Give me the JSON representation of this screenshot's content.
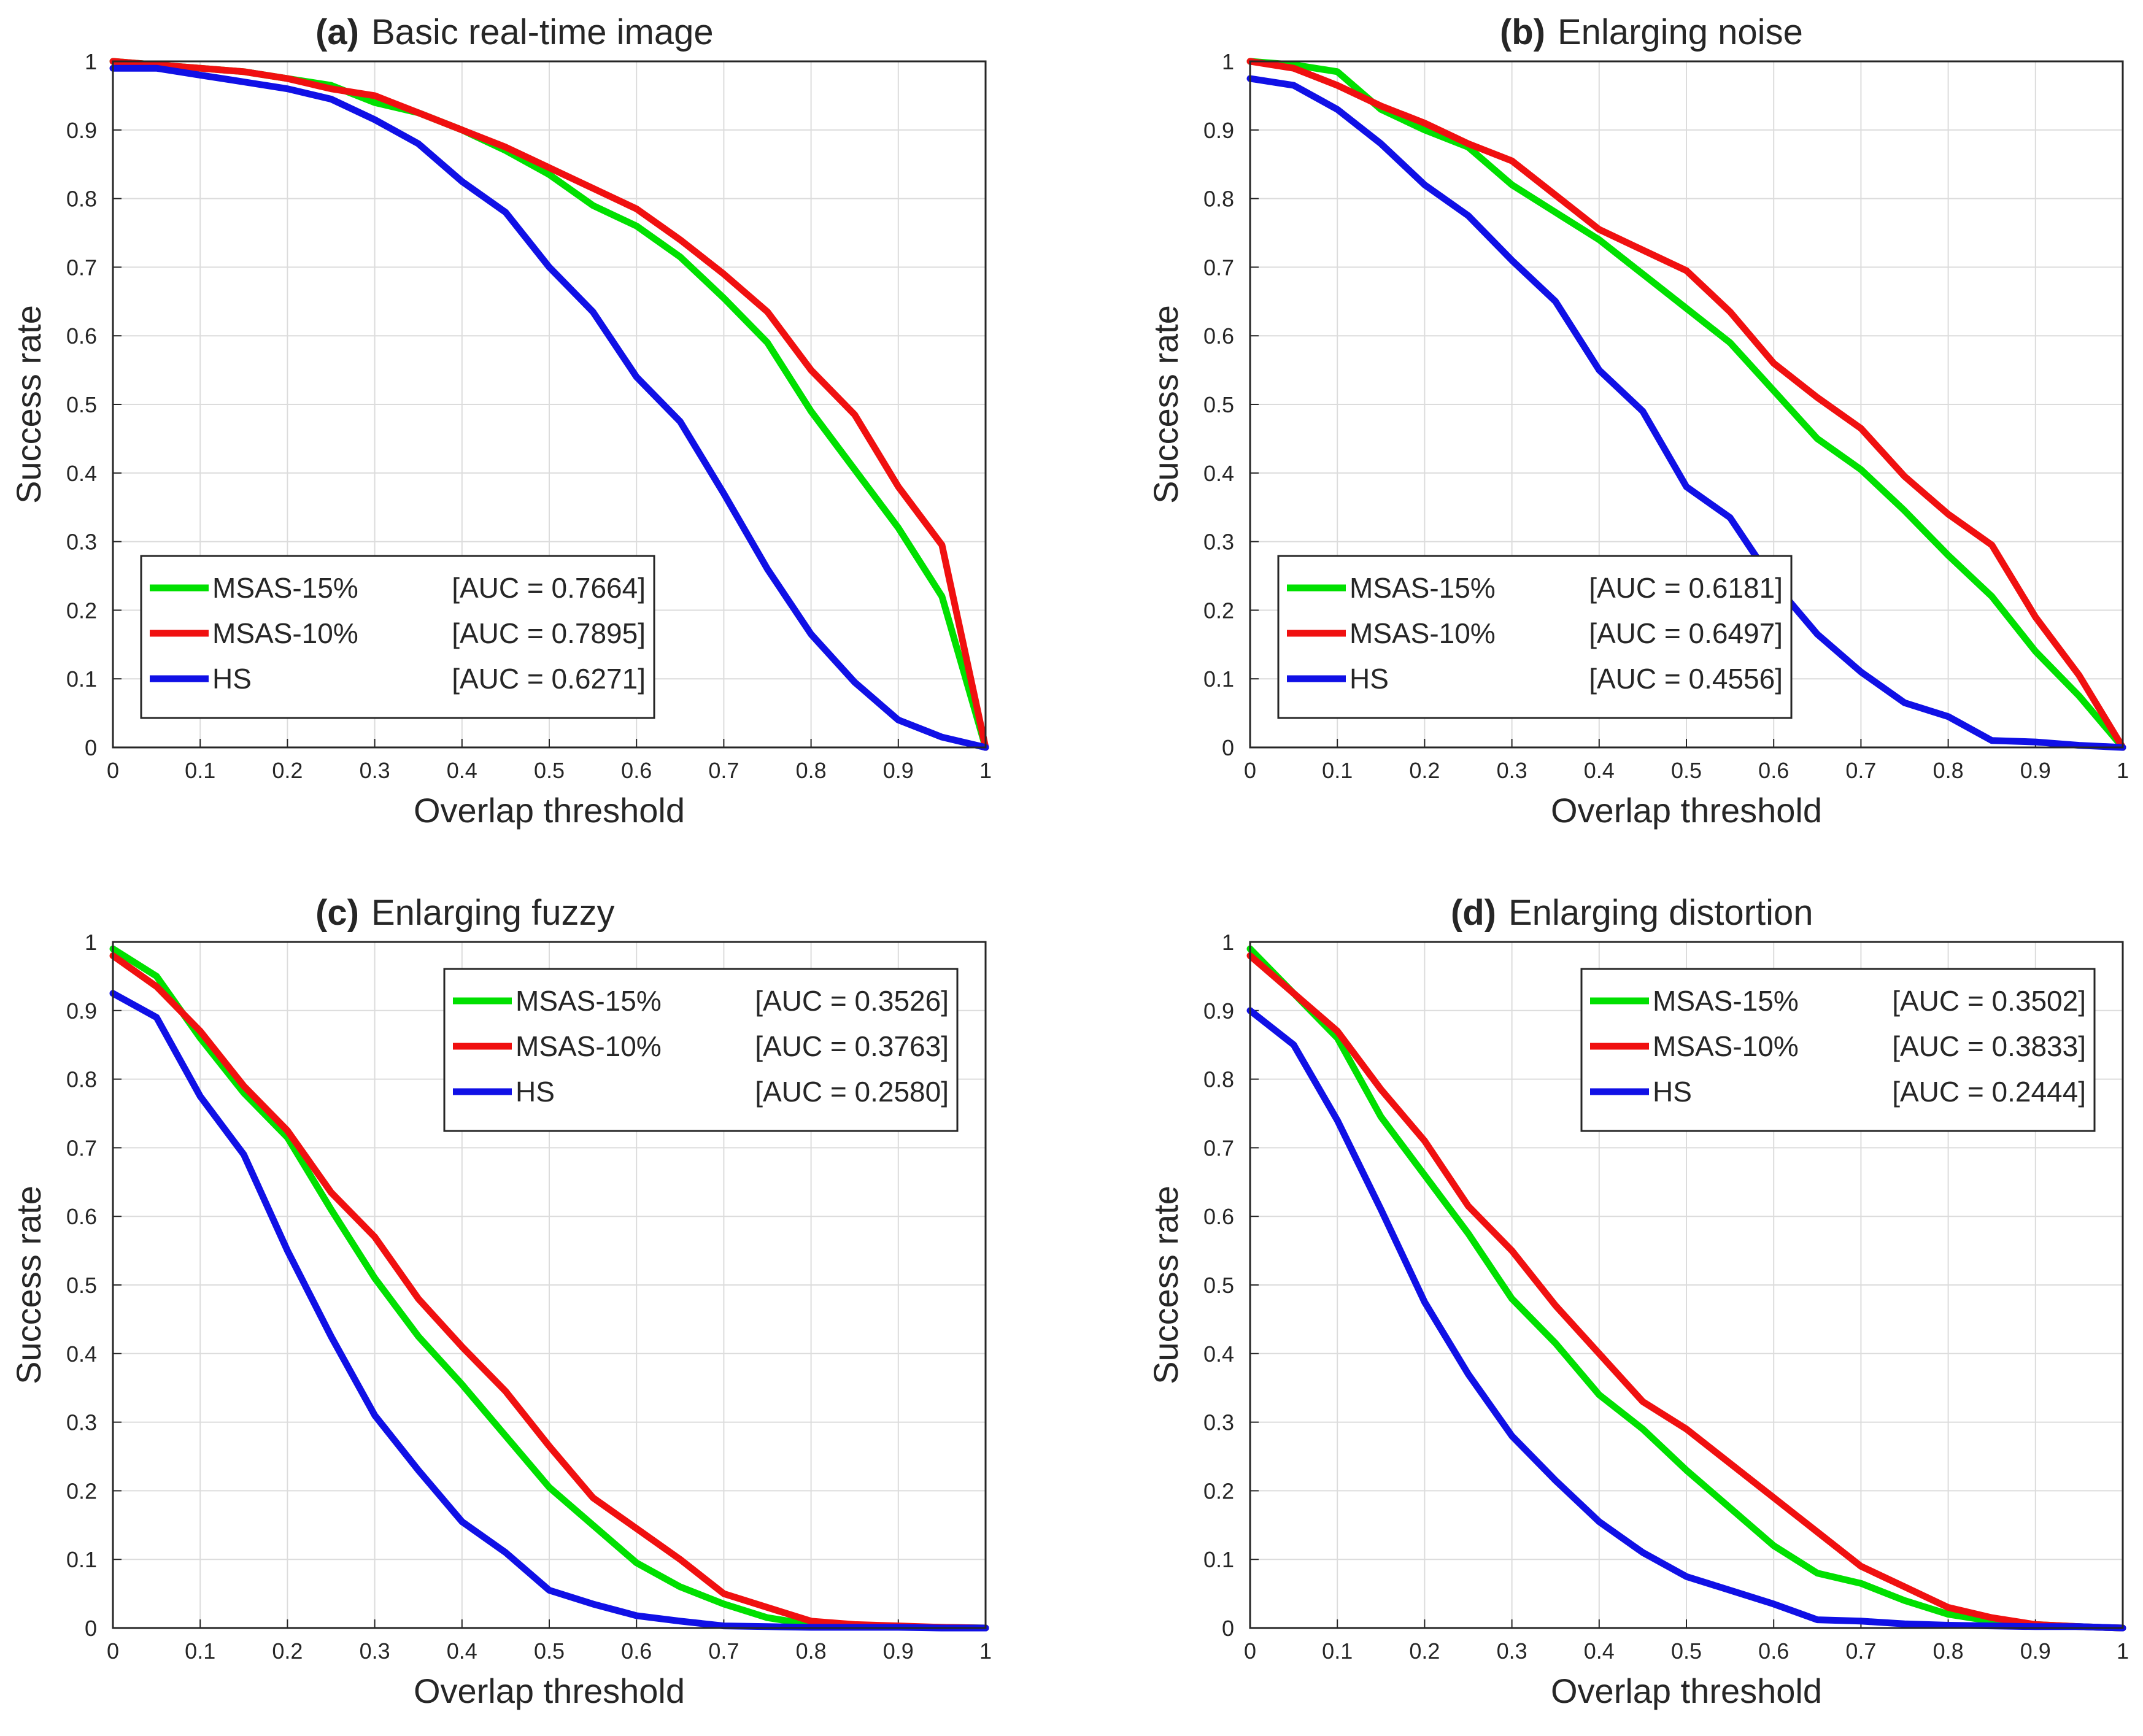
{
  "colors": {
    "MSAS-15%": "#00e000",
    "MSAS-10%": "#f01010",
    "HS": "#1010e6",
    "grid": "#dcdcdc",
    "axis": "#262626"
  },
  "chart_data": [
    {
      "type": "line",
      "tag": "(a)",
      "title": "Basic real-time image",
      "xlabel": "Overlap threshold",
      "ylabel": "Success rate",
      "xlim": [
        0,
        1
      ],
      "ylim": [
        0,
        1
      ],
      "xticks": [
        "0",
        "0.1",
        "0.2",
        "0.3",
        "0.4",
        "0.5",
        "0.6",
        "0.7",
        "0.8",
        "0.9",
        "1"
      ],
      "yticks": [
        "0",
        "0.1",
        "0.2",
        "0.3",
        "0.4",
        "0.5",
        "0.6",
        "0.7",
        "0.8",
        "0.9",
        "1"
      ],
      "grid": true,
      "legend_position": "bottom-left",
      "x": [
        0,
        0.05,
        0.1,
        0.15,
        0.2,
        0.25,
        0.3,
        0.35,
        0.4,
        0.45,
        0.5,
        0.55,
        0.6,
        0.65,
        0.7,
        0.75,
        0.8,
        0.85,
        0.9,
        0.95,
        1
      ],
      "series": [
        {
          "name": "MSAS-15%",
          "auc": "[AUC = 0.7664]",
          "values": [
            1.0,
            0.995,
            0.99,
            0.985,
            0.975,
            0.965,
            0.94,
            0.925,
            0.9,
            0.87,
            0.835,
            0.79,
            0.76,
            0.715,
            0.655,
            0.59,
            0.49,
            0.405,
            0.32,
            0.22,
            0.0
          ]
        },
        {
          "name": "MSAS-10%",
          "auc": "[AUC = 0.7895]",
          "values": [
            1.0,
            0.995,
            0.99,
            0.985,
            0.975,
            0.96,
            0.95,
            0.925,
            0.9,
            0.875,
            0.845,
            0.815,
            0.785,
            0.74,
            0.69,
            0.635,
            0.55,
            0.485,
            0.38,
            0.295,
            0.0
          ]
        },
        {
          "name": "HS",
          "auc": "[AUC = 0.6271]",
          "values": [
            0.99,
            0.99,
            0.98,
            0.97,
            0.96,
            0.945,
            0.915,
            0.88,
            0.825,
            0.78,
            0.7,
            0.635,
            0.54,
            0.475,
            0.37,
            0.26,
            0.165,
            0.095,
            0.04,
            0.015,
            0.0
          ]
        }
      ]
    },
    {
      "type": "line",
      "tag": "(b)",
      "title": "Enlarging noise",
      "xlabel": "Overlap threshold",
      "ylabel": "Success rate",
      "xlim": [
        0,
        1
      ],
      "ylim": [
        0,
        1
      ],
      "xticks": [
        "0",
        "0.1",
        "0.2",
        "0.3",
        "0.4",
        "0.5",
        "0.6",
        "0.7",
        "0.8",
        "0.9",
        "1"
      ],
      "yticks": [
        "0",
        "0.1",
        "0.2",
        "0.3",
        "0.4",
        "0.5",
        "0.6",
        "0.7",
        "0.8",
        "0.9",
        "1"
      ],
      "grid": true,
      "legend_position": "bottom-left",
      "x": [
        0,
        0.05,
        0.1,
        0.15,
        0.2,
        0.25,
        0.3,
        0.35,
        0.4,
        0.45,
        0.5,
        0.55,
        0.6,
        0.65,
        0.7,
        0.75,
        0.8,
        0.85,
        0.9,
        0.95,
        1
      ],
      "series": [
        {
          "name": "MSAS-15%",
          "auc": "[AUC = 0.6181]",
          "values": [
            1.0,
            0.995,
            0.985,
            0.93,
            0.9,
            0.875,
            0.82,
            0.78,
            0.74,
            0.69,
            0.64,
            0.59,
            0.52,
            0.45,
            0.405,
            0.345,
            0.28,
            0.22,
            0.14,
            0.075,
            0.0
          ]
        },
        {
          "name": "MSAS-10%",
          "auc": "[AUC = 0.6497]",
          "values": [
            1.0,
            0.99,
            0.965,
            0.935,
            0.91,
            0.88,
            0.855,
            0.805,
            0.755,
            0.725,
            0.695,
            0.635,
            0.56,
            0.51,
            0.465,
            0.395,
            0.34,
            0.295,
            0.19,
            0.105,
            0.0
          ]
        },
        {
          "name": "HS",
          "auc": "[AUC = 0.4556]",
          "values": [
            0.975,
            0.965,
            0.93,
            0.88,
            0.82,
            0.775,
            0.71,
            0.65,
            0.55,
            0.49,
            0.38,
            0.335,
            0.24,
            0.165,
            0.11,
            0.065,
            0.045,
            0.01,
            0.008,
            0.003,
            0.0
          ]
        }
      ]
    },
    {
      "type": "line",
      "tag": "(c)",
      "title": "Enlarging fuzzy",
      "xlabel": "Overlap threshold",
      "ylabel": "Success rate",
      "xlim": [
        0,
        1
      ],
      "ylim": [
        0,
        1
      ],
      "xticks": [
        "0",
        "0.1",
        "0.2",
        "0.3",
        "0.4",
        "0.5",
        "0.6",
        "0.7",
        "0.8",
        "0.9",
        "1"
      ],
      "yticks": [
        "0",
        "0.1",
        "0.2",
        "0.3",
        "0.4",
        "0.5",
        "0.6",
        "0.7",
        "0.8",
        "0.9",
        "1"
      ],
      "grid": true,
      "legend_position": "top-right",
      "x": [
        0,
        0.05,
        0.1,
        0.15,
        0.2,
        0.25,
        0.3,
        0.35,
        0.4,
        0.45,
        0.5,
        0.55,
        0.6,
        0.65,
        0.7,
        0.75,
        0.8,
        0.85,
        0.9,
        0.95,
        1
      ],
      "series": [
        {
          "name": "MSAS-15%",
          "auc": "[AUC = 0.3526]",
          "values": [
            0.99,
            0.95,
            0.86,
            0.78,
            0.715,
            0.61,
            0.51,
            0.425,
            0.355,
            0.28,
            0.205,
            0.15,
            0.095,
            0.06,
            0.035,
            0.015,
            0.005,
            0.003,
            0.002,
            0.001,
            0.0
          ]
        },
        {
          "name": "MSAS-10%",
          "auc": "[AUC = 0.3763]",
          "values": [
            0.98,
            0.935,
            0.87,
            0.79,
            0.725,
            0.635,
            0.57,
            0.48,
            0.41,
            0.345,
            0.265,
            0.19,
            0.145,
            0.1,
            0.05,
            0.03,
            0.01,
            0.005,
            0.003,
            0.001,
            0.0
          ]
        },
        {
          "name": "HS",
          "auc": "[AUC = 0.2580]",
          "values": [
            0.925,
            0.89,
            0.775,
            0.69,
            0.55,
            0.425,
            0.31,
            0.23,
            0.155,
            0.11,
            0.055,
            0.035,
            0.018,
            0.01,
            0.003,
            0.002,
            0.001,
            0.001,
            0.001,
            0.0,
            0.0
          ]
        }
      ]
    },
    {
      "type": "line",
      "tag": "(d)",
      "title": "Enlarging distortion",
      "xlabel": "Overlap threshold",
      "ylabel": "Success rate",
      "xlim": [
        0,
        1
      ],
      "ylim": [
        0,
        1
      ],
      "xticks": [
        "0",
        "0.1",
        "0.2",
        "0.3",
        "0.4",
        "0.5",
        "0.6",
        "0.7",
        "0.8",
        "0.9",
        "1"
      ],
      "yticks": [
        "0",
        "0.1",
        "0.2",
        "0.3",
        "0.4",
        "0.5",
        "0.6",
        "0.7",
        "0.8",
        "0.9",
        "1"
      ],
      "grid": true,
      "legend_position": "top-right",
      "x": [
        0,
        0.05,
        0.1,
        0.15,
        0.2,
        0.25,
        0.3,
        0.35,
        0.4,
        0.45,
        0.5,
        0.55,
        0.6,
        0.65,
        0.7,
        0.75,
        0.8,
        0.85,
        0.9,
        0.95,
        1
      ],
      "series": [
        {
          "name": "MSAS-15%",
          "auc": "[AUC = 0.3502]",
          "values": [
            0.99,
            0.925,
            0.86,
            0.745,
            0.66,
            0.575,
            0.48,
            0.415,
            0.34,
            0.29,
            0.23,
            0.175,
            0.12,
            0.08,
            0.065,
            0.04,
            0.02,
            0.01,
            0.005,
            0.002,
            0.0
          ]
        },
        {
          "name": "MSAS-10%",
          "auc": "[AUC = 0.3833]",
          "values": [
            0.98,
            0.925,
            0.87,
            0.785,
            0.71,
            0.615,
            0.55,
            0.47,
            0.4,
            0.33,
            0.29,
            0.24,
            0.19,
            0.14,
            0.09,
            0.06,
            0.03,
            0.015,
            0.005,
            0.002,
            0.0
          ]
        },
        {
          "name": "HS",
          "auc": "[AUC = 0.2444]",
          "values": [
            0.9,
            0.85,
            0.74,
            0.61,
            0.475,
            0.37,
            0.28,
            0.215,
            0.155,
            0.11,
            0.075,
            0.055,
            0.035,
            0.012,
            0.01,
            0.006,
            0.004,
            0.003,
            0.002,
            0.002,
            0.0
          ]
        }
      ]
    }
  ]
}
